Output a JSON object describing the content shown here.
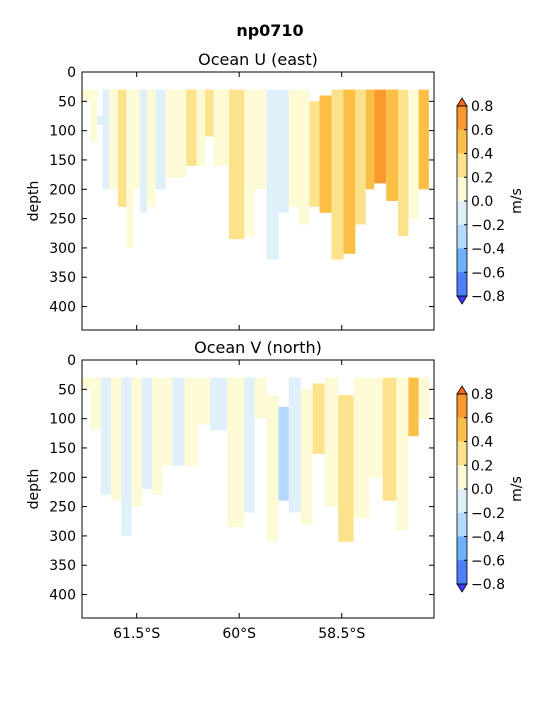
{
  "figure": {
    "title": "np0710"
  },
  "colors": {
    "levels": [
      "#3b3bff",
      "#4d80ff",
      "#6fb0ff",
      "#b3d9ff",
      "#dff0fa",
      "#fdfbd6",
      "#fde28c",
      "#fbbf45",
      "#fb9a2c",
      "#f4681a"
    ],
    "bounds": [
      -0.8,
      -0.6,
      -0.4,
      -0.2,
      0.0,
      0.2,
      0.4,
      0.6,
      0.8
    ]
  },
  "chart_data": [
    {
      "type": "heatmap",
      "title": "Ocean U (east)",
      "ylabel": "depth",
      "xlabel": "",
      "xticks": [
        "61.5°S",
        "60°S",
        "58.5°S"
      ],
      "xtick_values": [
        -61.5,
        -60.0,
        -58.5
      ],
      "xlim": [
        -62.3,
        -57.15
      ],
      "yticks": [
        "0",
        "50",
        "100",
        "150",
        "200",
        "250",
        "300",
        "350",
        "400"
      ],
      "ylim": [
        440,
        0
      ],
      "colorbar": {
        "label": "m/s",
        "ticks": [
          "0.8",
          "0.6",
          "0.4",
          "0.2",
          "0.0",
          "−0.2",
          "−0.4",
          "−0.6",
          "−0.8"
        ]
      },
      "cells": [
        {
          "lat": -62.25,
          "top": 30,
          "bottom": 50,
          "v": 0.1
        },
        {
          "lat": -62.1,
          "top": 30,
          "bottom": 120,
          "v": 0.1
        },
        {
          "lat": -62.05,
          "top": 75,
          "bottom": 90,
          "v": -0.1
        },
        {
          "lat": -61.95,
          "top": 30,
          "bottom": 200,
          "v": -0.1
        },
        {
          "lat": -61.85,
          "top": 30,
          "bottom": 200,
          "v": 0.1
        },
        {
          "lat": -61.7,
          "top": 30,
          "bottom": 230,
          "v": 0.3
        },
        {
          "lat": -61.6,
          "top": 30,
          "bottom": 300,
          "v": 0.1
        },
        {
          "lat": -61.5,
          "top": 30,
          "bottom": 200,
          "v": 0.1
        },
        {
          "lat": -61.4,
          "top": 30,
          "bottom": 240,
          "v": -0.1
        },
        {
          "lat": -61.3,
          "top": 30,
          "bottom": 230,
          "v": 0.1
        },
        {
          "lat": -61.15,
          "top": 30,
          "bottom": 200,
          "v": -0.1
        },
        {
          "lat": -61.0,
          "top": 30,
          "bottom": 180,
          "v": 0.1
        },
        {
          "lat": -60.85,
          "top": 30,
          "bottom": 180,
          "v": 0.1
        },
        {
          "lat": -60.7,
          "top": 30,
          "bottom": 160,
          "v": 0.3
        },
        {
          "lat": -60.55,
          "top": 30,
          "bottom": 160,
          "v": 0.1
        },
        {
          "lat": -60.45,
          "top": 30,
          "bottom": 110,
          "v": 0.3
        },
        {
          "lat": -60.3,
          "top": 30,
          "bottom": 160,
          "v": 0.1
        },
        {
          "lat": -60.0,
          "top": 30,
          "bottom": 285,
          "v": 0.3
        },
        {
          "lat": -59.85,
          "top": 30,
          "bottom": 280,
          "v": 0.1
        },
        {
          "lat": -59.7,
          "top": 30,
          "bottom": 200,
          "v": 0.1
        },
        {
          "lat": -59.5,
          "top": 30,
          "bottom": 320,
          "v": -0.1
        },
        {
          "lat": -59.35,
          "top": 30,
          "bottom": 240,
          "v": -0.1
        },
        {
          "lat": -59.2,
          "top": 30,
          "bottom": 230,
          "v": 0.1
        },
        {
          "lat": -59.05,
          "top": 30,
          "bottom": 260,
          "v": 0.1
        },
        {
          "lat": -58.9,
          "top": 50,
          "bottom": 230,
          "v": 0.3
        },
        {
          "lat": -58.75,
          "top": 40,
          "bottom": 240,
          "v": 0.5
        },
        {
          "lat": -58.55,
          "top": 30,
          "bottom": 320,
          "v": 0.3
        },
        {
          "lat": -58.4,
          "top": 30,
          "bottom": 310,
          "v": 0.5
        },
        {
          "lat": -58.2,
          "top": 30,
          "bottom": 260,
          "v": 0.3
        },
        {
          "lat": -58.1,
          "top": 30,
          "bottom": 200,
          "v": 0.5
        },
        {
          "lat": -57.95,
          "top": 30,
          "bottom": 190,
          "v": 0.7
        },
        {
          "lat": -57.75,
          "top": 30,
          "bottom": 220,
          "v": 0.5
        },
        {
          "lat": -57.6,
          "top": 30,
          "bottom": 280,
          "v": 0.3
        },
        {
          "lat": -57.45,
          "top": 30,
          "bottom": 250,
          "v": 0.1
        },
        {
          "lat": -57.3,
          "top": 30,
          "bottom": 200,
          "v": 0.5
        }
      ]
    },
    {
      "type": "heatmap",
      "title": "Ocean V (north)",
      "ylabel": "depth",
      "xlabel": "",
      "xticks": [
        "61.5°S",
        "60°S",
        "58.5°S"
      ],
      "xtick_values": [
        -61.5,
        -60.0,
        -58.5
      ],
      "xlim": [
        -62.3,
        -57.15
      ],
      "yticks": [
        "0",
        "50",
        "100",
        "150",
        "200",
        "250",
        "300",
        "350",
        "400"
      ],
      "ylim": [
        440,
        0
      ],
      "colorbar": {
        "label": "m/s",
        "ticks": [
          "0.8",
          "0.6",
          "0.4",
          "0.2",
          "0.0",
          "−0.2",
          "−0.4",
          "−0.6",
          "−0.8"
        ]
      },
      "cells": [
        {
          "lat": -62.25,
          "top": 30,
          "bottom": 50,
          "v": 0.1
        },
        {
          "lat": -62.1,
          "top": 30,
          "bottom": 120,
          "v": 0.1
        },
        {
          "lat": -61.95,
          "top": 30,
          "bottom": 230,
          "v": -0.1
        },
        {
          "lat": -61.8,
          "top": 30,
          "bottom": 240,
          "v": 0.1
        },
        {
          "lat": -61.65,
          "top": 30,
          "bottom": 300,
          "v": -0.1
        },
        {
          "lat": -61.5,
          "top": 30,
          "bottom": 250,
          "v": 0.1
        },
        {
          "lat": -61.35,
          "top": 30,
          "bottom": 220,
          "v": -0.1
        },
        {
          "lat": -61.2,
          "top": 30,
          "bottom": 230,
          "v": 0.1
        },
        {
          "lat": -61.05,
          "top": 30,
          "bottom": 180,
          "v": 0.1
        },
        {
          "lat": -60.9,
          "top": 30,
          "bottom": 180,
          "v": -0.1
        },
        {
          "lat": -60.7,
          "top": 30,
          "bottom": 180,
          "v": 0.1
        },
        {
          "lat": -60.5,
          "top": 30,
          "bottom": 110,
          "v": 0.1
        },
        {
          "lat": -60.35,
          "top": 30,
          "bottom": 120,
          "v": -0.1
        },
        {
          "lat": -60.0,
          "top": 30,
          "bottom": 285,
          "v": 0.1
        },
        {
          "lat": -59.85,
          "top": 30,
          "bottom": 260,
          "v": -0.1
        },
        {
          "lat": -59.7,
          "top": 30,
          "bottom": 100,
          "v": 0.1
        },
        {
          "lat": -59.5,
          "top": 60,
          "bottom": 310,
          "v": 0.1
        },
        {
          "lat": -59.35,
          "top": 80,
          "bottom": 240,
          "v": -0.3
        },
        {
          "lat": -59.2,
          "top": 30,
          "bottom": 260,
          "v": -0.1
        },
        {
          "lat": -59.0,
          "top": 50,
          "bottom": 280,
          "v": 0.1
        },
        {
          "lat": -58.85,
          "top": 40,
          "bottom": 160,
          "v": 0.3
        },
        {
          "lat": -58.65,
          "top": 30,
          "bottom": 250,
          "v": 0.1
        },
        {
          "lat": -58.45,
          "top": 60,
          "bottom": 310,
          "v": 0.3
        },
        {
          "lat": -58.2,
          "top": 30,
          "bottom": 270,
          "v": 0.1
        },
        {
          "lat": -58.0,
          "top": 30,
          "bottom": 200,
          "v": 0.1
        },
        {
          "lat": -57.8,
          "top": 30,
          "bottom": 240,
          "v": 0.3
        },
        {
          "lat": -57.6,
          "top": 30,
          "bottom": 290,
          "v": 0.1
        },
        {
          "lat": -57.45,
          "top": 30,
          "bottom": 130,
          "v": 0.5
        },
        {
          "lat": -57.3,
          "top": 30,
          "bottom": 100,
          "v": 0.1
        }
      ]
    }
  ]
}
